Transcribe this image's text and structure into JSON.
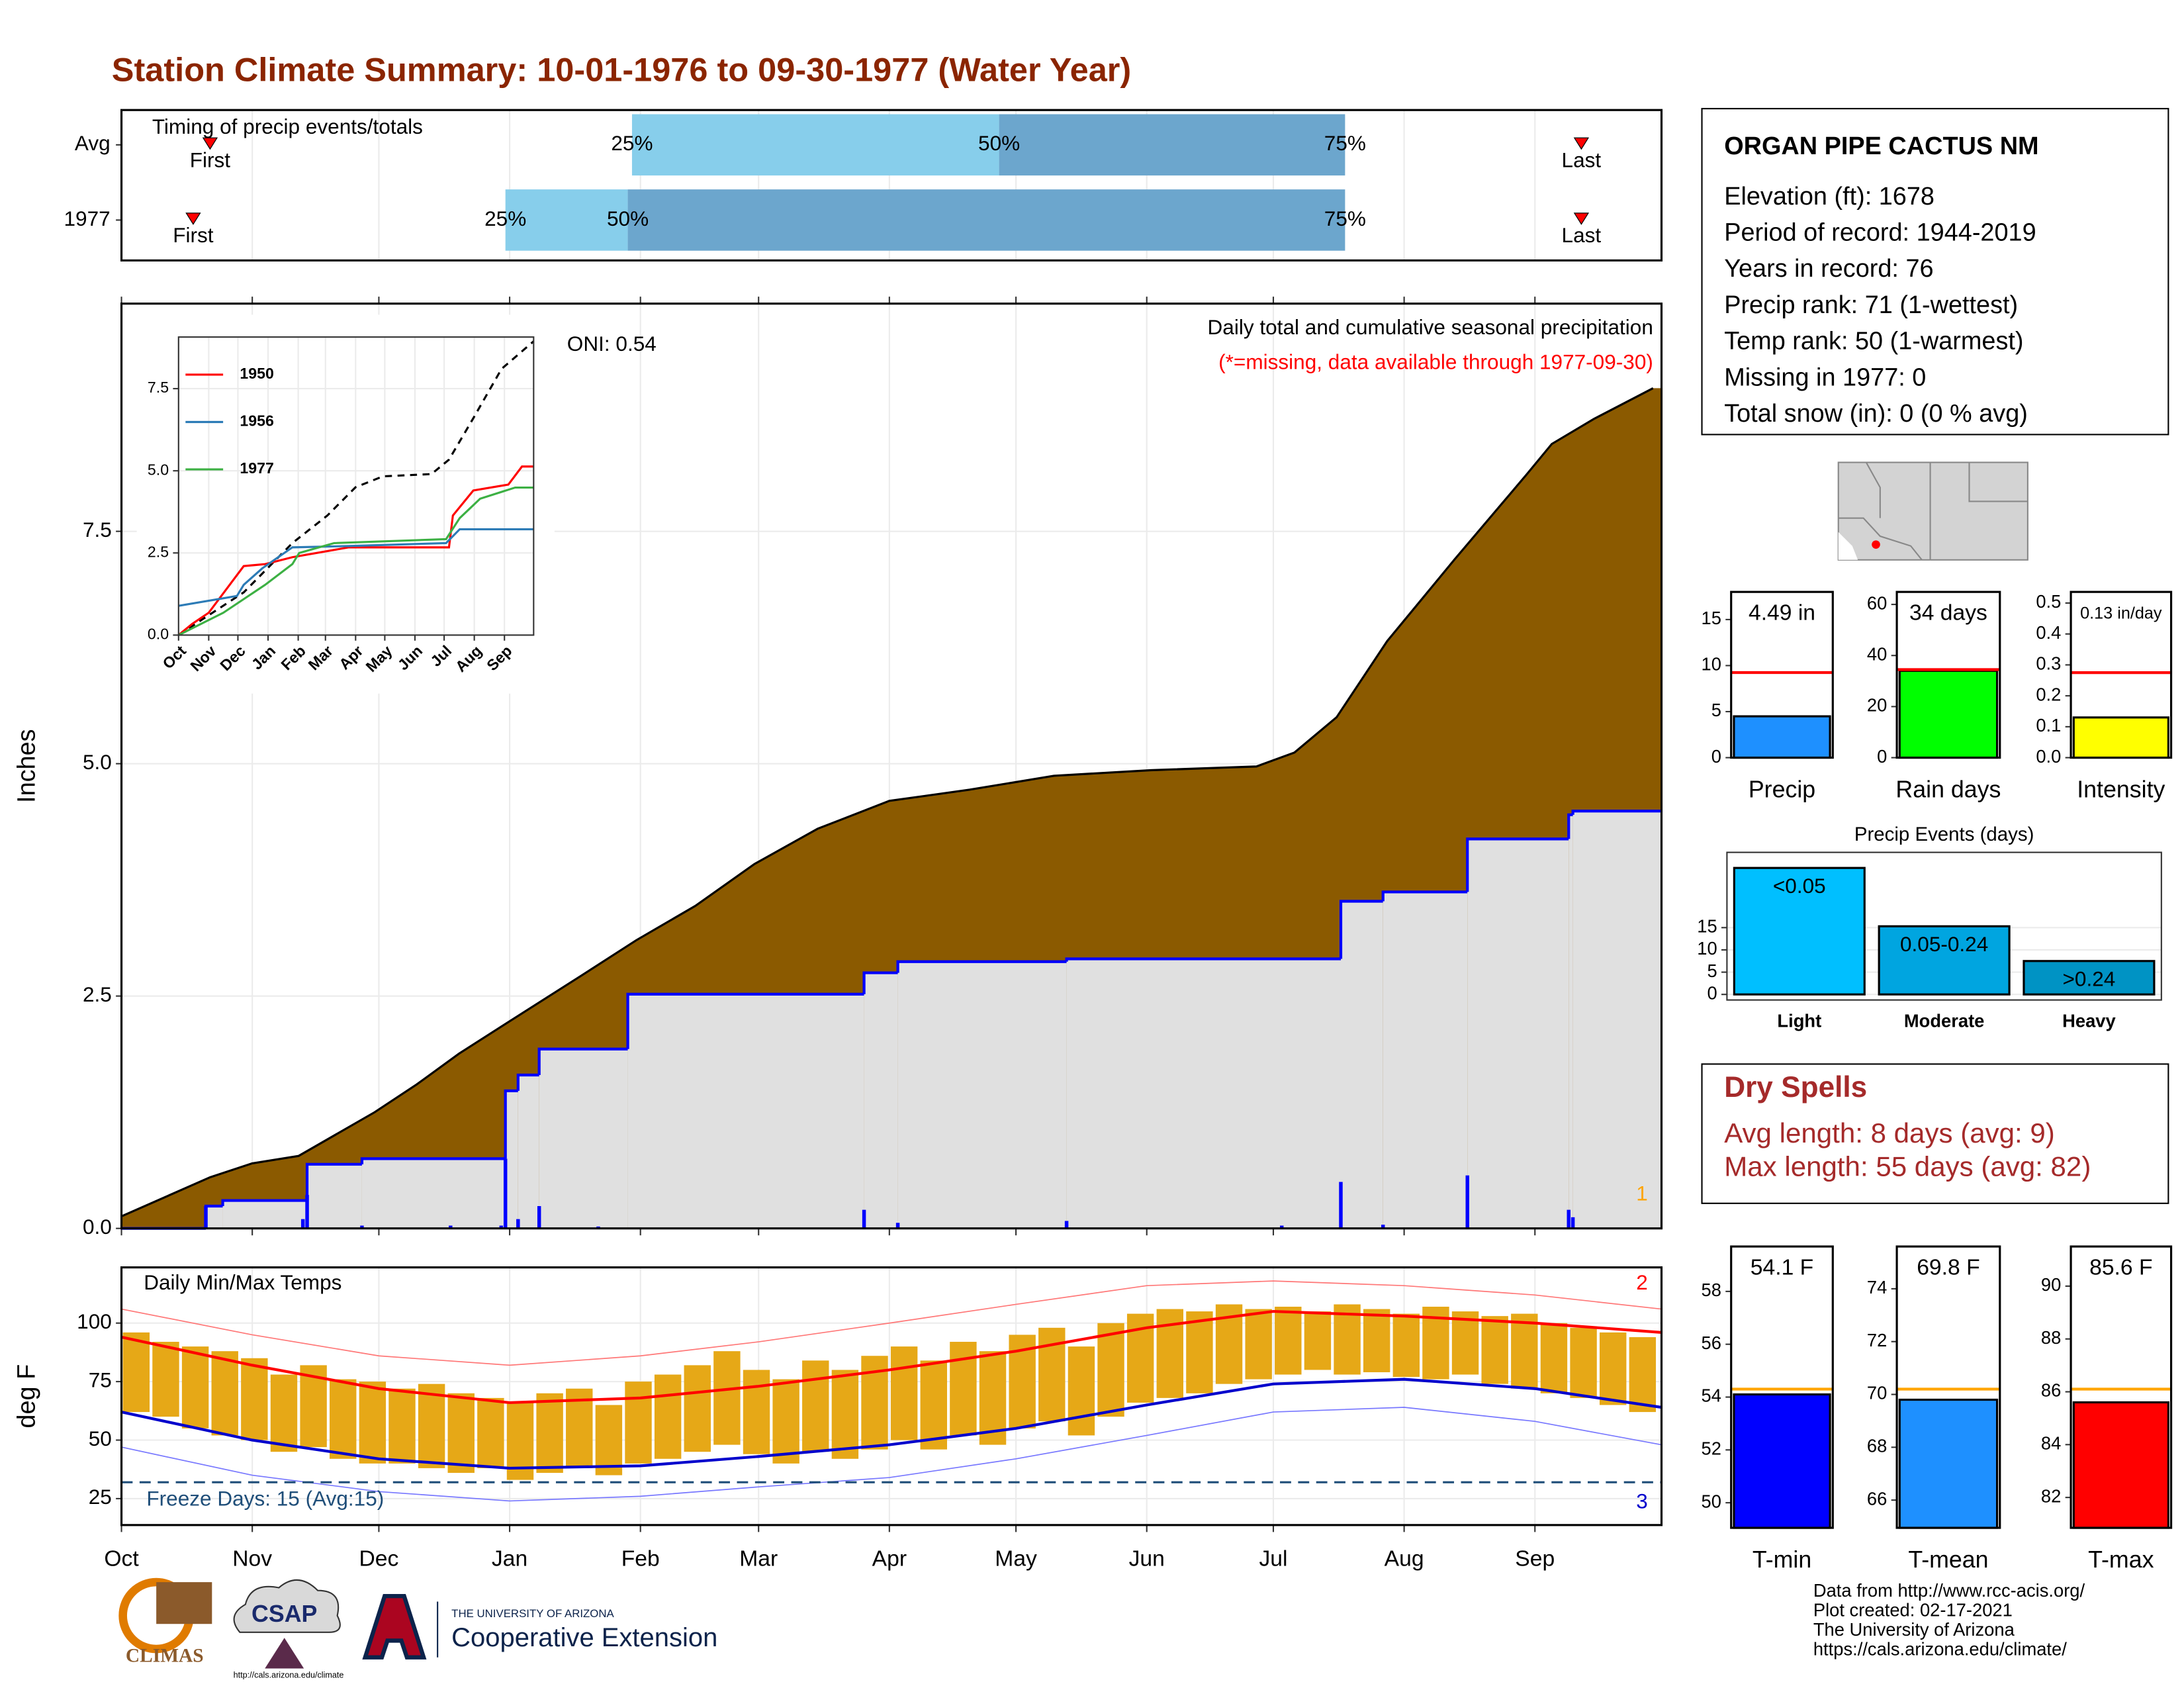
{
  "title": "Station Climate Summary: 10-01-1976 to 09-30-1977 (Water Year)",
  "chart_data": [
    {
      "type": "timeline",
      "title": "Timing of precip events/totals",
      "categories": [
        "Avg",
        "1977"
      ],
      "first": [
        21,
        17
      ],
      "q25": [
        121,
        91
      ],
      "q50": [
        208,
        120
      ],
      "q75": [
        290,
        290
      ],
      "last": [
        346,
        346
      ],
      "first_label": "First",
      "last_label": "Last",
      "quantile_labels": [
        "25%",
        "50%",
        "75%"
      ],
      "colors": [
        "#87ceeb",
        "#6ca6cd"
      ],
      "marker_color": "#ff0000",
      "xlim": [
        0,
        365
      ],
      "xticks": [
        0,
        31,
        61,
        92,
        123,
        151,
        182,
        212,
        243,
        273,
        304,
        335
      ],
      "grid": true
    },
    {
      "type": "area",
      "y_label": "Inches",
      "oni": "ONI: 0.54",
      "subtitle": "Daily total and cumulative seasonal precipitation",
      "note": "(*=missing, data available through 1977-09-30)",
      "note_color": "#ff0000",
      "corner_label": "1",
      "corner_color": "#ffa500",
      "xlim": [
        0,
        365
      ],
      "ylim": [
        0,
        9.95
      ],
      "xticks": [
        0,
        31,
        61,
        92,
        123,
        151,
        182,
        212,
        243,
        273,
        304,
        335
      ],
      "yticks": [
        {
          "value": 0,
          "label": "0.0"
        },
        2.5,
        {
          "value": 5,
          "label": "5.0"
        },
        7.5
      ],
      "grid": true,
      "series": [
        {
          "kind": "area",
          "color": "#8b5a00",
          "x": [
            0,
            21,
            31,
            42,
            60,
            70,
            80,
            91,
            109,
            122,
            136,
            150,
            165,
            182,
            201,
            221,
            244,
            269,
            278,
            288,
            300,
            316,
            333,
            339,
            349,
            363
          ],
          "values": [
            0.13,
            0.55,
            0.7,
            0.78,
            1.25,
            1.55,
            1.88,
            2.2,
            2.72,
            3.1,
            3.47,
            3.92,
            4.3,
            4.6,
            4.72,
            4.87,
            4.93,
            4.97,
            5.12,
            5.5,
            6.32,
            7.2,
            8.11,
            8.44,
            8.71,
            9.04
          ]
        },
        {
          "kind": "step",
          "color": "#0000ff",
          "fill": "#e0e0e0",
          "x": [
            0,
            20,
            24,
            44,
            57,
            91,
            94,
            99,
            120,
            176,
            184,
            224,
            289,
            299,
            319,
            343,
            344
          ],
          "values": [
            0,
            0.24,
            0.3,
            0.69,
            0.75,
            1.48,
            1.65,
            1.93,
            2.52,
            2.75,
            2.87,
            2.9,
            3.52,
            3.62,
            4.19,
            4.45,
            4.49
          ]
        },
        {
          "kind": "bar",
          "color": "#0000ff",
          "x": [
            20,
            43,
            44,
            57,
            78,
            90,
            91,
            94,
            99,
            113,
            176,
            184,
            224,
            275,
            289,
            299,
            319,
            343,
            344
          ],
          "values": [
            0.24,
            0.1,
            0.36,
            0.03,
            0.03,
            0.03,
            0.75,
            0.1,
            0.24,
            0.02,
            0.2,
            0.06,
            0.08,
            0.03,
            0.5,
            0.04,
            0.57,
            0.2,
            0.12
          ]
        }
      ]
    },
    {
      "type": "line",
      "xlim": [
        0,
        365
      ],
      "ylim": [
        0,
        9.07
      ],
      "grid": true,
      "xticks": [
        {
          "value": 0,
          "label": "Oct"
        },
        {
          "value": 31,
          "label": "Nov"
        },
        {
          "value": 61,
          "label": "Dec"
        },
        {
          "value": 92,
          "label": "Jan"
        },
        {
          "value": 123,
          "label": "Feb"
        },
        {
          "value": 151,
          "label": "Mar"
        },
        {
          "value": 182,
          "label": "Apr"
        },
        {
          "value": 212,
          "label": "May"
        },
        {
          "value": 243,
          "label": "Jun"
        },
        {
          "value": 273,
          "label": "Jul"
        },
        {
          "value": 304,
          "label": "Aug"
        },
        {
          "value": 335,
          "label": "Sep"
        }
      ],
      "yticks": [
        {
          "value": 0,
          "label": "0.0"
        },
        2.5,
        {
          "value": 5,
          "label": "5.0"
        },
        7.5
      ],
      "series": [
        {
          "color": "#000000",
          "dashed": true,
          "x": [
            0,
            24,
            67,
            117,
            153,
            182,
            210,
            260,
            278,
            303,
            332,
            365
          ],
          "values": [
            0,
            0.47,
            1.3,
            2.8,
            3.64,
            4.5,
            4.83,
            4.9,
            5.34,
            6.6,
            8.1,
            8.94
          ]
        },
        {
          "name": "1950",
          "color": "#ff0000",
          "x": [
            0,
            14,
            31,
            67,
            89,
            117,
            175,
            278,
            282,
            303,
            339,
            353,
            365
          ],
          "values": [
            0,
            0.34,
            0.68,
            2.1,
            2.16,
            2.37,
            2.67,
            2.67,
            3.64,
            4.4,
            4.58,
            5.13,
            5.13
          ]
        },
        {
          "name": "1956",
          "color": "#2c7bb6",
          "x": [
            0,
            60,
            67,
            86,
            117,
            175,
            275,
            289,
            365
          ],
          "values": [
            0.89,
            1.19,
            1.53,
            2.03,
            2.67,
            2.71,
            2.8,
            3.22,
            3.22
          ]
        },
        {
          "name": "1977",
          "color": "#3cb043",
          "x": [
            0,
            46,
            89,
            117,
            124,
            160,
            275,
            289,
            310,
            346,
            365
          ],
          "values": [
            0,
            0.68,
            1.53,
            2.16,
            2.5,
            2.8,
            2.92,
            3.56,
            4.15,
            4.49,
            4.49
          ]
        }
      ]
    },
    {
      "type": "bar",
      "categories": [
        "Precip"
      ],
      "values": [
        4.49
      ],
      "value_labels": [
        "4.49 in"
      ],
      "colors": [
        "#1e90ff"
      ],
      "ref_line": {
        "value": 9.24,
        "color": "#ff0000"
      },
      "ylim": [
        0,
        18
      ],
      "yticks": [
        0,
        5,
        10,
        15
      ]
    },
    {
      "type": "bar",
      "categories": [
        "Rain days"
      ],
      "values": [
        34
      ],
      "value_labels": [
        "34 days"
      ],
      "colors": [
        "#00ff00"
      ],
      "ref_line": {
        "value": 34.5,
        "color": "#ff0000"
      },
      "ylim": [
        0,
        64.9
      ],
      "yticks": [
        0,
        20,
        40,
        60
      ]
    },
    {
      "type": "bar",
      "categories": [
        "Intensity"
      ],
      "values": [
        0.13
      ],
      "value_labels": [
        "0.13 in/day"
      ],
      "colors": [
        "#ffff00"
      ],
      "ref_line": {
        "value": 0.275,
        "color": "#ff0000"
      },
      "ylim": [
        0,
        0.536
      ],
      "yticks": [
        {
          "value": 0,
          "label": "0.0"
        },
        0.1,
        0.2,
        0.3,
        0.4,
        0.5
      ]
    },
    {
      "type": "bar",
      "title": "Precip Events (days)",
      "categories": [
        "Light",
        "Moderate",
        "Heavy"
      ],
      "values": [
        28.4,
        15.3,
        7.5
      ],
      "bar_labels": [
        "<0.05",
        "0.05-0.24",
        ">0.24"
      ],
      "colors": [
        "#00bfff",
        "#00a5e0",
        "#0093c4"
      ],
      "ylim": [
        -1.25,
        31.9
      ],
      "yticks": [
        0,
        5,
        10,
        15
      ],
      "grid": true
    },
    {
      "type": "range",
      "title": "Daily Min/Max Temps",
      "y_label": "deg F",
      "freeze_label": "Freeze Days: 15 (Avg:15)",
      "freeze_line": 32,
      "freeze_color": "#1f4e79",
      "max_corner": "2",
      "min_corner": "3",
      "color": "#e6a817",
      "xlim": [
        0,
        365
      ],
      "ylim": [
        13.7,
        123.8
      ],
      "yticks": [
        25,
        50,
        75,
        100
      ],
      "grid": true,
      "xticks": [
        {
          "value": 0,
          "label": "Oct"
        },
        {
          "value": 31,
          "label": "Nov"
        },
        {
          "value": 61,
          "label": "Dec"
        },
        {
          "value": 92,
          "label": "Jan"
        },
        {
          "value": 123,
          "label": "Feb"
        },
        {
          "value": 151,
          "label": "Mar"
        },
        {
          "value": 182,
          "label": "Apr"
        },
        {
          "value": 212,
          "label": "May"
        },
        {
          "value": 243,
          "label": "Jun"
        },
        {
          "value": 273,
          "label": "Jul"
        },
        {
          "value": 304,
          "label": "Aug"
        },
        {
          "value": 335,
          "label": "Sep"
        }
      ],
      "x": [
        0,
        7,
        14,
        21,
        28,
        35,
        42,
        49,
        56,
        63,
        70,
        77,
        84,
        91,
        98,
        105,
        112,
        119,
        126,
        133,
        140,
        147,
        154,
        161,
        168,
        175,
        182,
        189,
        196,
        203,
        210,
        217,
        224,
        231,
        238,
        245,
        252,
        259,
        266,
        273,
        280,
        287,
        294,
        301,
        308,
        315,
        322,
        329,
        336,
        343,
        350,
        357
      ],
      "high": [
        96,
        92,
        90,
        88,
        85,
        78,
        82,
        76,
        75,
        72,
        74,
        70,
        68,
        66,
        70,
        72,
        65,
        75,
        78,
        82,
        88,
        80,
        76,
        84,
        80,
        86,
        90,
        84,
        92,
        88,
        95,
        98,
        90,
        100,
        104,
        106,
        105,
        108,
        106,
        107,
        105,
        108,
        106,
        104,
        107,
        105,
        103,
        104,
        100,
        98,
        96,
        94
      ],
      "low": [
        62,
        60,
        55,
        52,
        50,
        45,
        47,
        42,
        40,
        40,
        38,
        36,
        38,
        33,
        36,
        38,
        35,
        40,
        42,
        45,
        48,
        44,
        40,
        45,
        42,
        46,
        50,
        46,
        52,
        48,
        55,
        58,
        52,
        60,
        66,
        68,
        70,
        74,
        76,
        78,
        80,
        78,
        79,
        77,
        76,
        78,
        74,
        72,
        70,
        68,
        65,
        62
      ],
      "series": [
        {
          "color": "#ff0000",
          "width": 2,
          "x": [
            0,
            31,
            61,
            92,
            123,
            151,
            182,
            212,
            243,
            273,
            304,
            335,
            365
          ],
          "values": [
            94,
            82,
            72,
            66,
            68,
            73,
            80,
            88,
            98,
            105,
            103,
            100,
            96
          ]
        },
        {
          "color": "#0000cc",
          "width": 2,
          "x": [
            0,
            31,
            61,
            92,
            123,
            151,
            182,
            212,
            243,
            273,
            304,
            335,
            365
          ],
          "values": [
            62,
            50,
            42,
            38,
            39,
            43,
            48,
            55,
            65,
            74,
            76,
            72,
            64
          ]
        },
        {
          "color": "#ff7777",
          "width": 0.8,
          "x": [
            0,
            31,
            61,
            92,
            123,
            151,
            182,
            212,
            243,
            273,
            304,
            335,
            365
          ],
          "values": [
            106,
            95,
            86,
            82,
            86,
            92,
            100,
            108,
            116,
            118,
            116,
            112,
            106
          ]
        },
        {
          "color": "#7777ff",
          "width": 0.8,
          "x": [
            0,
            31,
            61,
            92,
            123,
            151,
            182,
            212,
            243,
            273,
            304,
            335,
            365
          ],
          "values": [
            47,
            35,
            28,
            24,
            26,
            30,
            34,
            42,
            52,
            62,
            64,
            58,
            48
          ]
        }
      ]
    },
    {
      "type": "bar",
      "categories": [
        "T-min"
      ],
      "values": [
        54.1
      ],
      "value_labels": [
        "54.1 F"
      ],
      "colors": [
        "#0000ff"
      ],
      "ref_line": {
        "value": 54.3,
        "color": "#ffa500"
      },
      "ylim": [
        49.05,
        59.7
      ],
      "yticks": [
        50,
        52,
        54,
        56,
        58
      ]
    },
    {
      "type": "bar",
      "categories": [
        "T-mean"
      ],
      "values": [
        69.8
      ],
      "value_labels": [
        "69.8 F"
      ],
      "colors": [
        "#1e90ff"
      ],
      "ref_line": {
        "value": 70.2,
        "color": "#ffa500"
      },
      "ylim": [
        64.95,
        75.6
      ],
      "yticks": [
        66,
        68,
        70,
        72,
        74
      ]
    },
    {
      "type": "bar",
      "categories": [
        "T-max"
      ],
      "values": [
        85.6
      ],
      "value_labels": [
        "85.6 F"
      ],
      "colors": [
        "#ff0000"
      ],
      "ref_line": {
        "value": 86.1,
        "color": "#ffa500"
      },
      "ylim": [
        80.85,
        91.5
      ],
      "yticks": [
        82,
        84,
        86,
        88,
        90
      ]
    }
  ],
  "station": {
    "name": "ORGAN PIPE CACTUS NM",
    "lines": [
      "Elevation (ft): 1678",
      "Period of record: 1944-2019",
      "Years in record: 76",
      "Precip rank: 71 (1-wettest)",
      "Temp rank: 50 (1-warmest)",
      "Missing in 1977: 0",
      "Total snow (in): 0 (0 % avg)"
    ]
  },
  "dry_spells": {
    "title": "Dry Spells",
    "lines": [
      "Avg length: 8 days (avg: 9)",
      "Max length: 55 days (avg: 82)"
    ]
  },
  "footer": {
    "climas": "CLIMAS",
    "csap": "CSAP",
    "csap_url": "http://cals.arizona.edu/climate",
    "ua_small": "THE UNIVERSITY OF ARIZONA",
    "ua_large": "Cooperative Extension"
  },
  "credits": [
    "Data from http://www.rcc-acis.org/",
    "Plot created: 02-17-2021",
    "The University of Arizona",
    "https://cals.arizona.edu/climate/"
  ]
}
